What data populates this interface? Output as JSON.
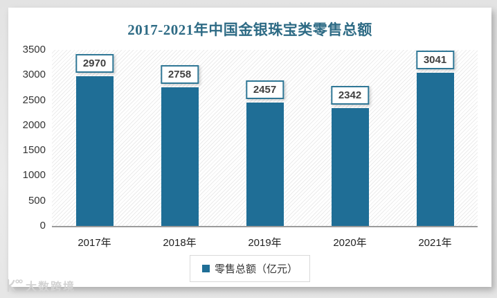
{
  "page": {
    "watermark_text": "大数跨境"
  },
  "chart": {
    "title": "2017-2021年中国金银珠宝类零售总额",
    "legend_label": "零售总额（亿元）",
    "colors": {
      "title": "#2e6b85",
      "bar": "#1f6e96",
      "value_box_border": "#2f7796",
      "value_text": "#404040",
      "axis_text": "#333333",
      "axis_line": "#9b9b9b",
      "legend_border": "#d9d9d9"
    }
  },
  "chart_data": {
    "type": "bar",
    "title": "2017-2021年中国金银珠宝类零售总额",
    "categories": [
      "2017年",
      "2018年",
      "2019年",
      "2020年",
      "2021年"
    ],
    "series": [
      {
        "name": "零售总额（亿元）",
        "values": [
          2970,
          2758,
          2457,
          2342,
          3041
        ]
      }
    ],
    "data_labels": [
      "2970",
      "2758",
      "2457",
      "2342",
      "3041"
    ],
    "xlabel": "",
    "ylabel": "",
    "ylim": [
      0,
      3500
    ],
    "ytick_step": 500,
    "yticks": [
      3500,
      3000,
      2500,
      2000,
      1500,
      1000,
      500,
      0
    ],
    "grid": false,
    "legend_position": "bottom",
    "plot_background": "diagonal-hatch"
  }
}
